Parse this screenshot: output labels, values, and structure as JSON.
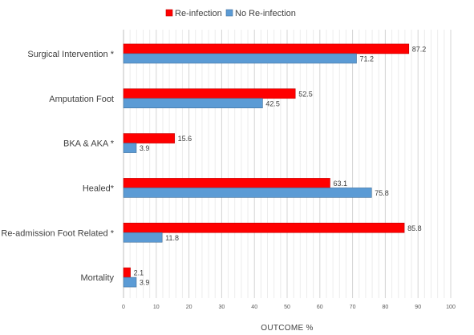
{
  "chart_data": {
    "type": "bar",
    "orientation": "horizontal",
    "categories": [
      "Surgical Intervention *",
      "Amputation Foot",
      "BKA & AKA *",
      "Healed*",
      "Re-admission Foot Related *",
      "Mortality"
    ],
    "series": [
      {
        "name": "Re-infection",
        "color": "#ff0000",
        "values": [
          87.2,
          52.5,
          15.6,
          63.1,
          85.8,
          2.1
        ]
      },
      {
        "name": "No Re-infection",
        "color": "#5b9bd5",
        "values": [
          71.2,
          42.5,
          3.9,
          75.8,
          11.8,
          3.9
        ]
      }
    ],
    "xlabel": "OUTCOME %",
    "ylabel": "",
    "xlim": [
      0,
      100
    ],
    "ticks": [
      0,
      10,
      20,
      30,
      40,
      50,
      60,
      70,
      80,
      90,
      100
    ],
    "grid": true,
    "legend": "top-center"
  }
}
